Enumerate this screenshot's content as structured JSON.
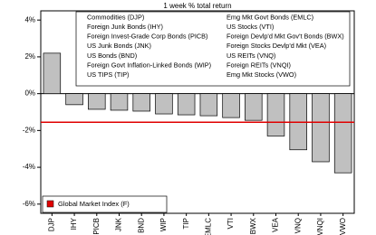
{
  "chart_data": {
    "type": "bar",
    "title": "1 week % total return",
    "categories": [
      "DJP",
      "IHY",
      "PICB",
      "JNK",
      "BND",
      "WIP",
      "TIP",
      "EMLC",
      "VTI",
      "BWX",
      "VEA",
      "VNQ",
      "VNQI",
      "VWO"
    ],
    "values": [
      2.2,
      -0.6,
      -0.85,
      -0.9,
      -0.95,
      -1.1,
      -1.15,
      -1.2,
      -1.3,
      -1.45,
      -2.3,
      -3.05,
      -3.7,
      -4.3
    ],
    "color": "#c0c0c0",
    "ylim": [
      -6.5,
      4.5
    ],
    "yticks": [
      {
        "value": 4,
        "label": "4%"
      },
      {
        "value": 2,
        "label": "2%"
      },
      {
        "value": 0,
        "label": "0%"
      },
      {
        "value": -2,
        "label": "-2%"
      },
      {
        "value": -4,
        "label": "-4%"
      },
      {
        "value": -6,
        "label": "-6%"
      }
    ],
    "reference": {
      "name": "Global Market Index (F)",
      "value": -1.55,
      "color": "#e00000"
    },
    "notes": [
      "Commodities (DJP)",
      "Foreign Junk Bonds (IHY)",
      "Foreign Invest-Grade Corp Bonds (PICB)",
      "US Junk Bonds (JNK)",
      "US Bonds (BND)",
      "Foreign Govt Inflation-Linked Bonds (WIP)",
      "US TIPS (TIP)",
      "Emg Mkt Govt Bonds (EMLC)",
      "US Stocks (VTI)",
      "Foreign Devlp'd Mkt Gov't Bonds (BWX)",
      "Foreign Stocks Devlp'd Mkt (VEA)",
      "US REITs (VNQ)",
      "Foreign REITs (VNQI)",
      "Emg Mkt Stocks (VWO)"
    ]
  }
}
